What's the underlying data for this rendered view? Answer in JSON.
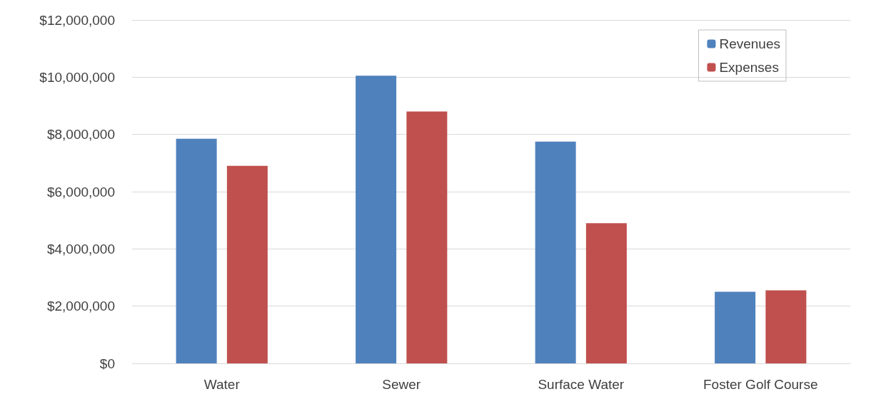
{
  "chart_data": {
    "type": "bar",
    "categories": [
      "Water",
      "Sewer",
      "Surface Water",
      "Foster Golf Course"
    ],
    "series": [
      {
        "name": "Revenues",
        "color": "#4f81bd",
        "values": [
          7850000,
          10050000,
          7750000,
          2500000
        ]
      },
      {
        "name": "Expenses",
        "color": "#c0504d",
        "values": [
          6900000,
          8800000,
          4900000,
          2550000
        ]
      }
    ],
    "ylim": [
      0,
      12000000
    ],
    "yticks": [
      {
        "value": 0,
        "label": "$0"
      },
      {
        "value": 2000000,
        "label": "$2,000,000"
      },
      {
        "value": 4000000,
        "label": "$4,000,000"
      },
      {
        "value": 6000000,
        "label": "$6,000,000"
      },
      {
        "value": 8000000,
        "label": "$8,000,000"
      },
      {
        "value": 10000000,
        "label": "$10,000,000"
      },
      {
        "value": 12000000,
        "label": "$12,000,000"
      }
    ],
    "grid": true,
    "legend": "top right"
  }
}
